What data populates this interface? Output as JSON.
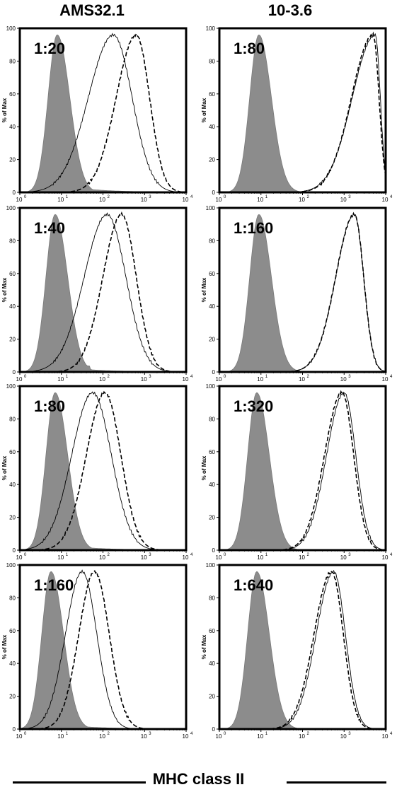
{
  "column_titles": [
    "AMS32.1",
    "10-3.6"
  ],
  "x_axis_title": "MHC class II",
  "chart_data": [
    {
      "type": "area",
      "antibody": "AMS32.1",
      "dilution": "1:20",
      "ylabel": "% of Max",
      "ylim": [
        0,
        100
      ],
      "yticks": [
        0,
        20,
        40,
        60,
        80,
        100
      ],
      "xlim": [
        0,
        4
      ],
      "x_scale": "log",
      "xtick_labels": [
        "10^0",
        "10^1",
        "10^2",
        "10^3",
        "10^4"
      ],
      "series": [
        {
          "style": "gray-filled",
          "peak_log": 0.9,
          "sigma_left": 0.22,
          "sigma_right": 0.3,
          "tail_log": 1.6,
          "tail_level": 0.05
        },
        {
          "style": "solid",
          "peak_log": 2.25,
          "sigma_left": 0.6,
          "sigma_right": 0.45
        },
        {
          "style": "dashed",
          "peak_log": 2.8,
          "sigma_left": 0.48,
          "sigma_right": 0.32
        }
      ]
    },
    {
      "type": "area",
      "antibody": "AMS32.1",
      "dilution": "1:40",
      "ylabel": "% of Max",
      "ylim": [
        0,
        100
      ],
      "yticks": [
        0,
        20,
        40,
        60,
        80,
        100
      ],
      "xlim": [
        0,
        4
      ],
      "x_scale": "log",
      "xtick_labels": [
        "10^0",
        "10^1",
        "10^2",
        "10^3",
        "10^4"
      ],
      "series": [
        {
          "style": "gray-filled",
          "peak_log": 0.85,
          "sigma_left": 0.22,
          "sigma_right": 0.3,
          "tail_log": 1.7,
          "tail_level": 0.04
        },
        {
          "style": "solid",
          "peak_log": 2.1,
          "sigma_left": 0.55,
          "sigma_right": 0.45
        },
        {
          "style": "dashed",
          "peak_log": 2.45,
          "sigma_left": 0.45,
          "sigma_right": 0.35
        }
      ]
    },
    {
      "type": "area",
      "antibody": "AMS32.1",
      "dilution": "1:80",
      "ylabel": "% of Max",
      "ylim": [
        0,
        100
      ],
      "yticks": [
        0,
        20,
        40,
        60,
        80,
        100
      ],
      "xlim": [
        0,
        4
      ],
      "x_scale": "log",
      "xtick_labels": [
        "10^0",
        "10^1",
        "10^2",
        "10^3",
        "10^4"
      ],
      "series": [
        {
          "style": "gray-filled",
          "peak_log": 0.85,
          "sigma_left": 0.22,
          "sigma_right": 0.3,
          "tail_log": 1.6,
          "tail_level": 0.04
        },
        {
          "style": "solid",
          "peak_log": 1.75,
          "sigma_left": 0.5,
          "sigma_right": 0.45
        },
        {
          "style": "dashed",
          "peak_log": 2.05,
          "sigma_left": 0.45,
          "sigma_right": 0.38
        }
      ]
    },
    {
      "type": "area",
      "antibody": "AMS32.1",
      "dilution": "1:160",
      "ylabel": "% of Max",
      "ylim": [
        0,
        100
      ],
      "yticks": [
        0,
        20,
        40,
        60,
        80,
        100
      ],
      "xlim": [
        0,
        4
      ],
      "x_scale": "log",
      "xtick_labels": [
        "10^0",
        "10^1",
        "10^2",
        "10^3",
        "10^4"
      ],
      "series": [
        {
          "style": "gray-filled",
          "peak_log": 0.75,
          "sigma_left": 0.22,
          "sigma_right": 0.3,
          "tail_log": 1.4,
          "tail_level": 0.04
        },
        {
          "style": "solid",
          "peak_log": 1.5,
          "sigma_left": 0.4,
          "sigma_right": 0.35
        },
        {
          "style": "dashed",
          "peak_log": 1.8,
          "sigma_left": 0.38,
          "sigma_right": 0.35
        }
      ]
    },
    {
      "type": "area",
      "antibody": "10-3.6",
      "dilution": "1:80",
      "ylabel": "% of Max",
      "ylim": [
        0,
        100
      ],
      "yticks": [
        0,
        20,
        40,
        60,
        80,
        100
      ],
      "xlim": [
        0,
        4
      ],
      "x_scale": "log",
      "xtick_labels": [
        "10^0",
        "10^1",
        "10^2",
        "10^3",
        "10^4"
      ],
      "series": [
        {
          "style": "gray-filled",
          "peak_log": 0.95,
          "sigma_left": 0.22,
          "sigma_right": 0.3
        },
        {
          "style": "solid",
          "peak_log": 3.75,
          "sigma_left": 0.55,
          "sigma_right": 0.12
        },
        {
          "style": "dashed",
          "peak_log": 3.7,
          "sigma_left": 0.52,
          "sigma_right": 0.14
        }
      ]
    },
    {
      "type": "area",
      "antibody": "10-3.6",
      "dilution": "1:160",
      "ylabel": "% of Max",
      "ylim": [
        0,
        100
      ],
      "yticks": [
        0,
        20,
        40,
        60,
        80,
        100
      ],
      "xlim": [
        0,
        4
      ],
      "x_scale": "log",
      "xtick_labels": [
        "10^0",
        "10^1",
        "10^2",
        "10^3",
        "10^4"
      ],
      "series": [
        {
          "style": "gray-filled",
          "peak_log": 0.95,
          "sigma_left": 0.22,
          "sigma_right": 0.3
        },
        {
          "style": "solid",
          "peak_log": 3.25,
          "sigma_left": 0.45,
          "sigma_right": 0.22
        },
        {
          "style": "dashed",
          "peak_log": 3.25,
          "sigma_left": 0.45,
          "sigma_right": 0.22
        }
      ]
    },
    {
      "type": "area",
      "antibody": "10-3.6",
      "dilution": "1:320",
      "ylabel": "% of Max",
      "ylim": [
        0,
        100
      ],
      "yticks": [
        0,
        20,
        40,
        60,
        80,
        100
      ],
      "xlim": [
        0,
        4
      ],
      "x_scale": "log",
      "xtick_labels": [
        "10^0",
        "10^1",
        "10^2",
        "10^3",
        "10^4"
      ],
      "series": [
        {
          "style": "gray-filled",
          "peak_log": 0.9,
          "sigma_left": 0.22,
          "sigma_right": 0.3
        },
        {
          "style": "solid",
          "peak_log": 3.0,
          "sigma_left": 0.42,
          "sigma_right": 0.28
        },
        {
          "style": "dashed",
          "peak_log": 2.95,
          "sigma_left": 0.42,
          "sigma_right": 0.28
        }
      ]
    },
    {
      "type": "area",
      "antibody": "10-3.6",
      "dilution": "1:640",
      "ylabel": "% of Max",
      "ylim": [
        0,
        100
      ],
      "yticks": [
        0,
        20,
        40,
        60,
        80,
        100
      ],
      "xlim": [
        0,
        4
      ],
      "x_scale": "log",
      "xtick_labels": [
        "10^0",
        "10^1",
        "10^2",
        "10^3",
        "10^4"
      ],
      "series": [
        {
          "style": "gray-filled",
          "peak_log": 0.9,
          "sigma_left": 0.22,
          "sigma_right": 0.3
        },
        {
          "style": "solid",
          "peak_log": 2.75,
          "sigma_left": 0.42,
          "sigma_right": 0.28
        },
        {
          "style": "dashed",
          "peak_log": 2.7,
          "sigma_left": 0.42,
          "sigma_right": 0.28
        }
      ]
    }
  ]
}
